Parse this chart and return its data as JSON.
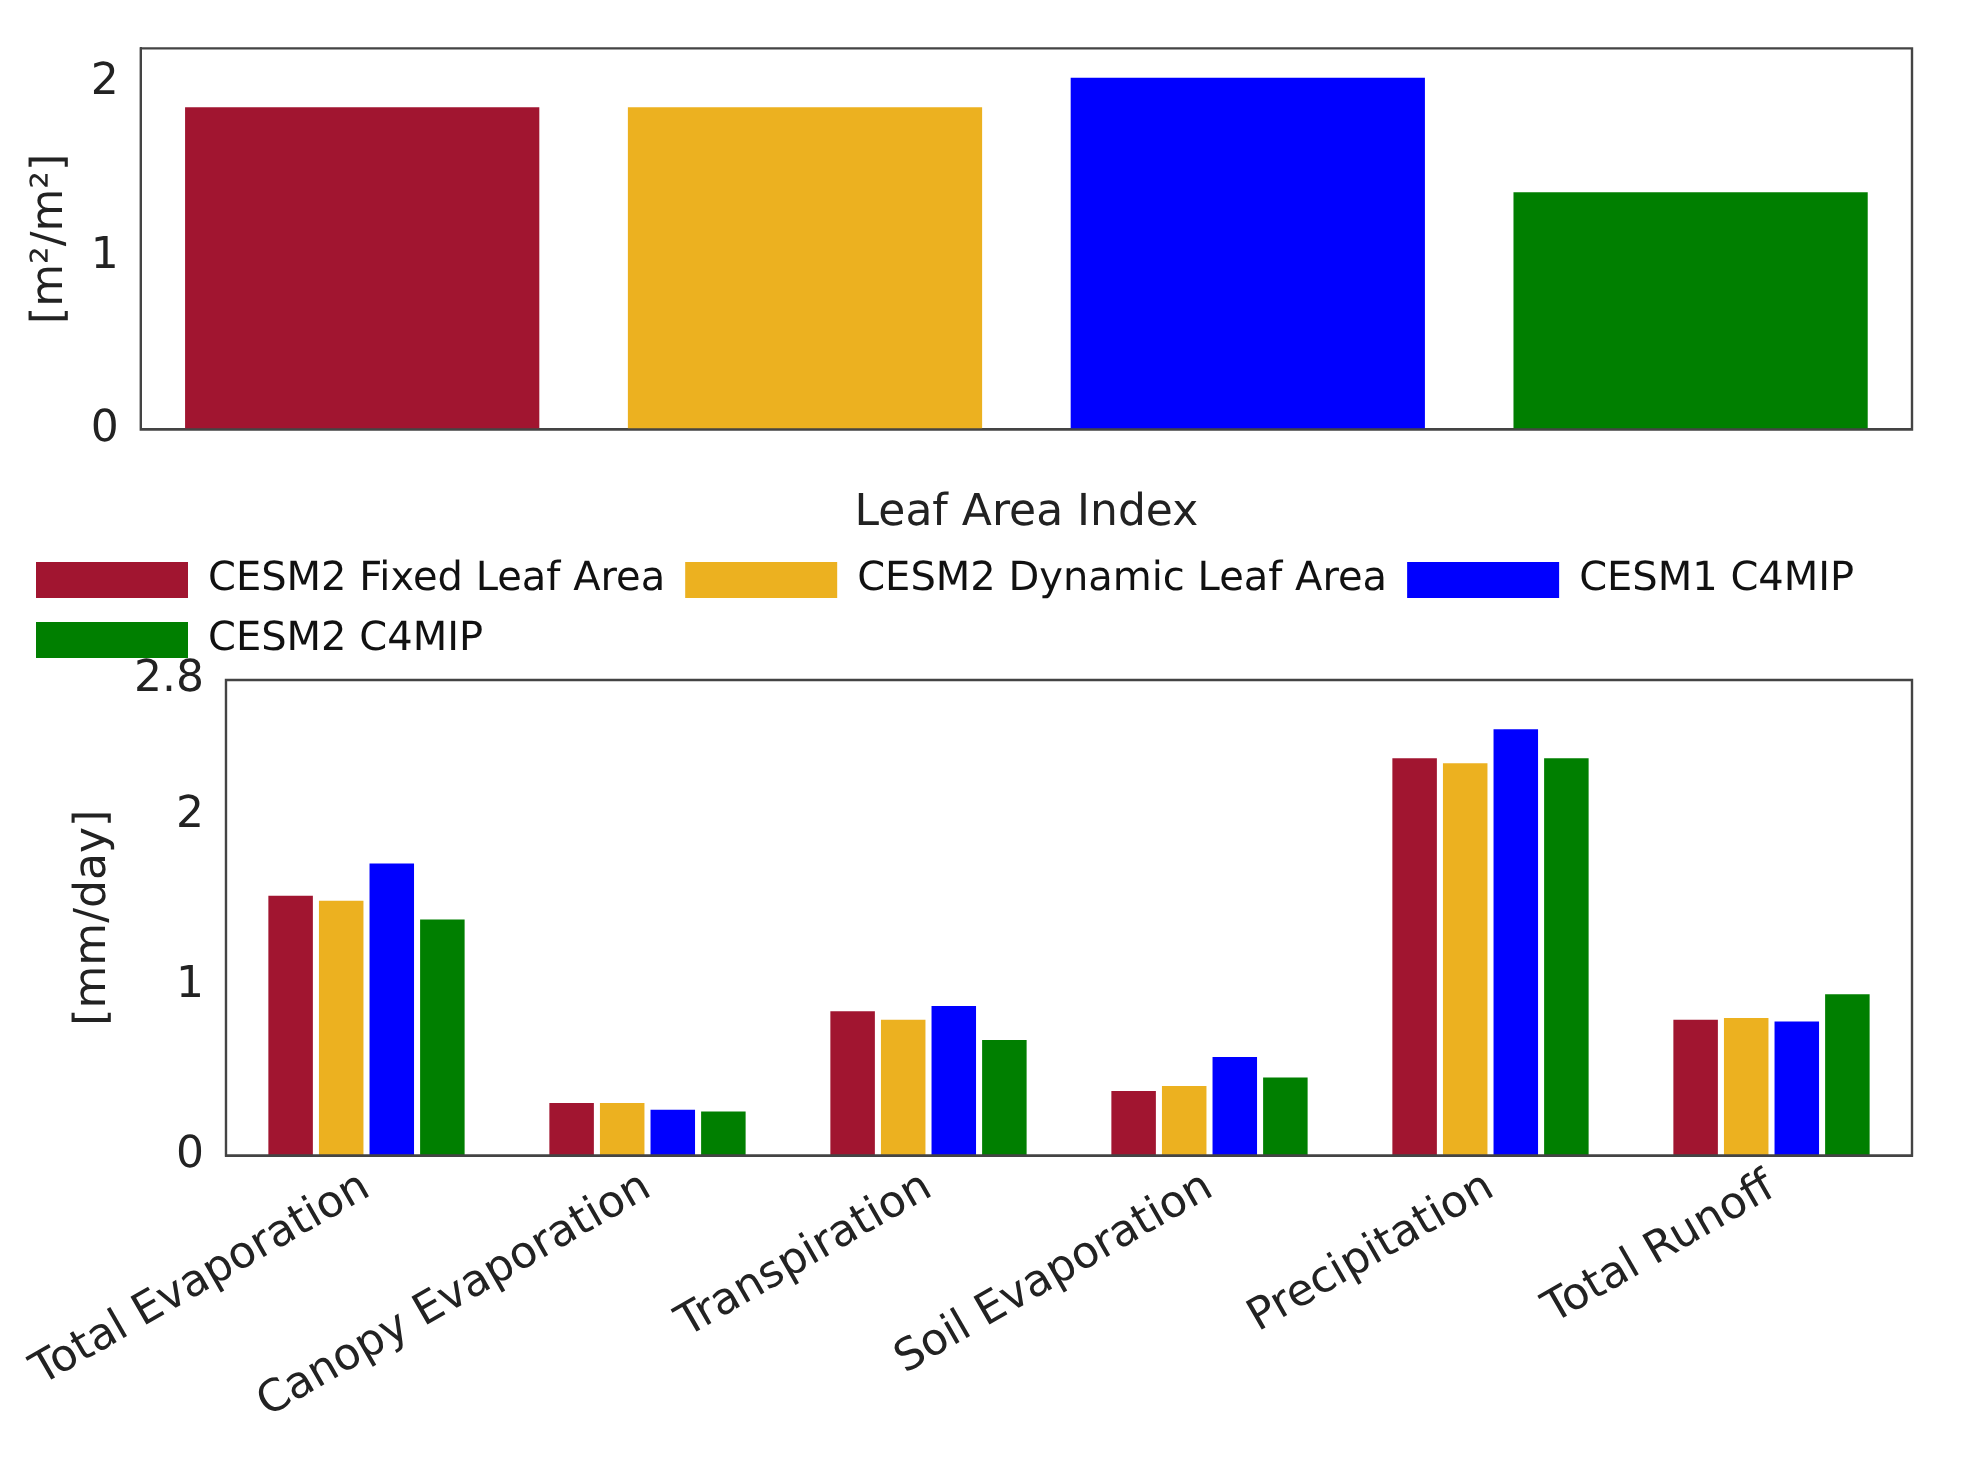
{
  "chart_data": [
    {
      "type": "bar",
      "ylabel": "[m²/m²]",
      "xlabel": "Leaf Area Index",
      "categories": [
        null,
        null,
        null,
        null
      ],
      "ylim": [
        0,
        2.2
      ],
      "yticks": [
        0,
        1,
        2
      ],
      "grid": false,
      "legend": false,
      "series": [
        {
          "colors": [
            "#a11530",
            "#ecb120",
            "#0000ff",
            "#007f00"
          ],
          "values": [
            1.86,
            1.86,
            2.03,
            1.37
          ]
        }
      ]
    },
    {
      "type": "bar",
      "ylabel": "[mm/day]",
      "categories": [
        "Total Evaporation",
        "Canopy Evaporation",
        "Transpiration",
        "Soil Evaporation",
        "Precipitation",
        "Total Runoff"
      ],
      "ylim": [
        0,
        2.8
      ],
      "yticks": [
        0,
        1,
        2,
        2.8
      ],
      "grid": false,
      "legend": "top left",
      "series": [
        {
          "name": "CESM2 Fixed Leaf Area",
          "color": "#a11530",
          "values": [
            1.53,
            0.31,
            0.85,
            0.38,
            2.34,
            0.8
          ]
        },
        {
          "name": "CESM2 Dynamic Leaf Area",
          "color": "#ecb120",
          "values": [
            1.5,
            0.31,
            0.8,
            0.41,
            2.31,
            0.81
          ]
        },
        {
          "name": "CESM1 C4MIP",
          "color": "#0000ff",
          "values": [
            1.72,
            0.27,
            0.88,
            0.58,
            2.51,
            0.79
          ]
        },
        {
          "name": "CESM2 C4MIP",
          "color": "#007f00",
          "values": [
            1.39,
            0.26,
            0.68,
            0.46,
            2.34,
            0.95
          ]
        }
      ]
    }
  ]
}
